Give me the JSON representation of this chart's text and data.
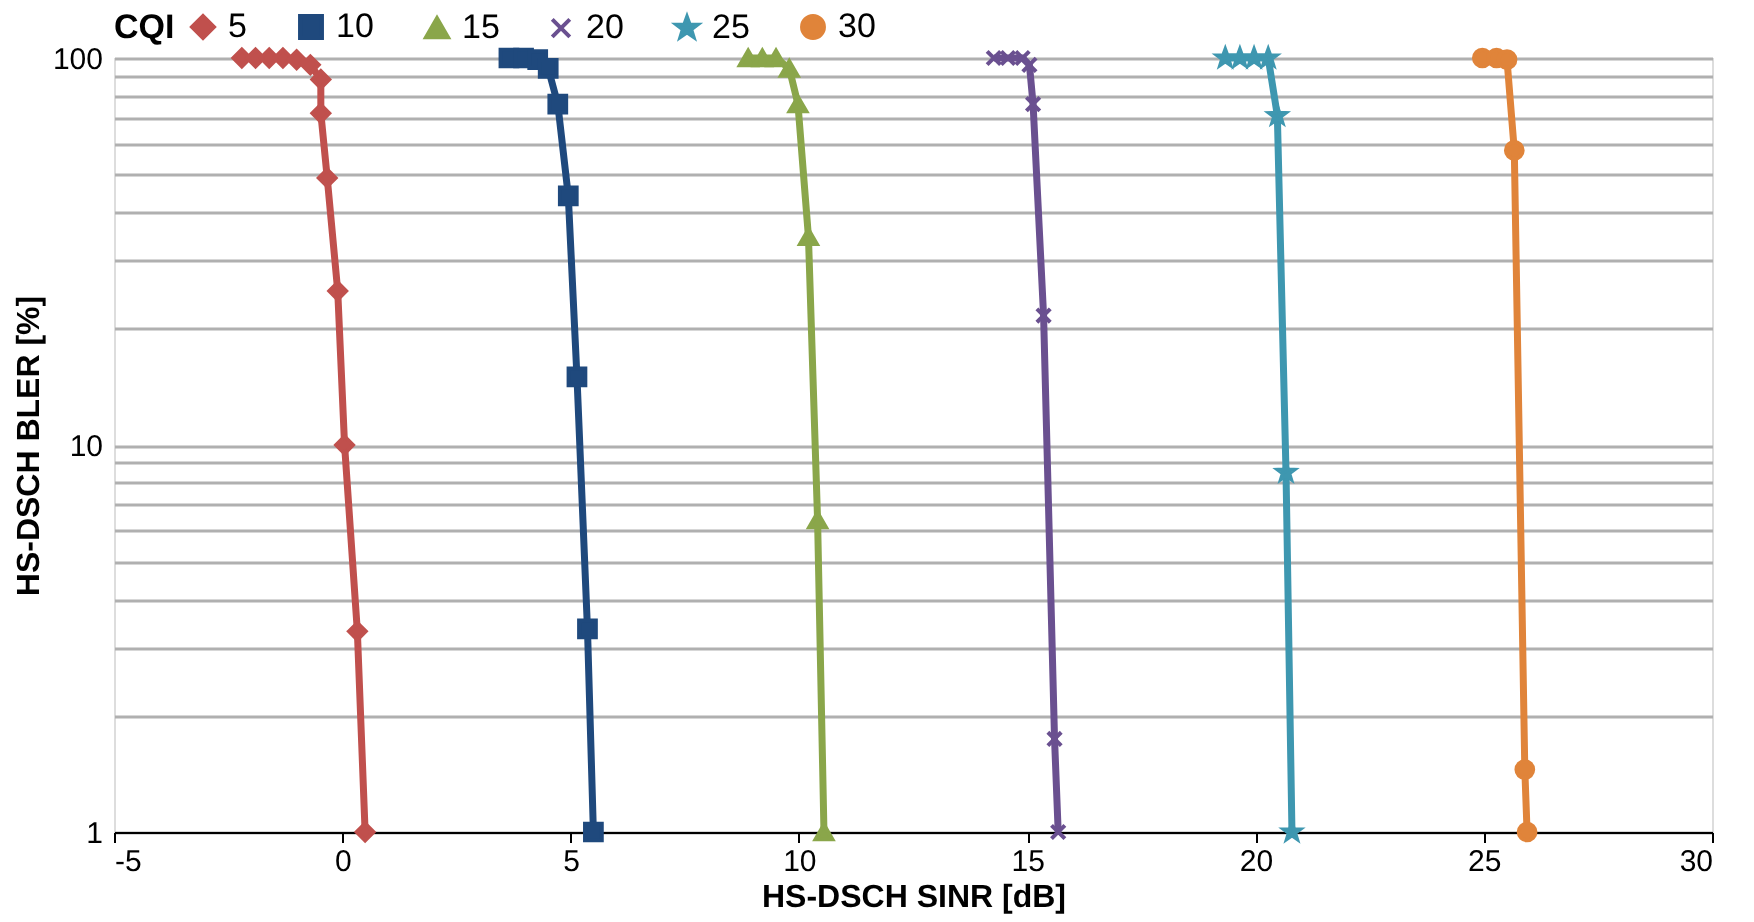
{
  "chart_data": {
    "type": "line",
    "xlabel": "HS-DSCH SINR [dB]",
    "ylabel": "HS-DSCH BLER [%]",
    "legend_title": "CQI",
    "legend": "top",
    "log": "y",
    "grid": "y",
    "line_style": "solid",
    "xlim": [
      -5,
      30
    ],
    "xticks": [
      -5,
      0,
      5,
      10,
      15,
      20,
      25,
      30
    ],
    "ylim": [
      1,
      100
    ],
    "yticks": [
      1,
      {
        "value": 2,
        "label": null
      },
      {
        "value": 3,
        "label": null
      },
      {
        "value": 4,
        "label": null
      },
      {
        "value": 5,
        "label": null
      },
      {
        "value": 6,
        "label": null
      },
      {
        "value": 7,
        "label": null
      },
      {
        "value": 8,
        "label": null
      },
      {
        "value": 9,
        "label": null
      },
      10,
      {
        "value": 20,
        "label": null
      },
      {
        "value": 30,
        "label": null
      },
      {
        "value": 40,
        "label": null
      },
      {
        "value": 50,
        "label": null
      },
      {
        "value": 60,
        "label": null
      },
      {
        "value": 70,
        "label": null
      },
      {
        "value": 80,
        "label": null
      },
      {
        "value": 90,
        "label": null
      },
      100
    ],
    "series": [
      {
        "name": "5",
        "color": "#c0504d",
        "marker": "diamond",
        "x": [
          -2.2,
          -1.9,
          -1.6,
          -1.3,
          -1.0,
          -0.7,
          -0.47,
          -0.47,
          -0.33,
          -0.1,
          0.05,
          0.33,
          0.5
        ],
        "values": [
          100,
          100,
          100,
          100,
          99,
          96,
          88,
          72,
          49,
          25,
          10,
          3.3,
          1
        ]
      },
      {
        "name": "10",
        "color": "#1f497d",
        "marker": "square",
        "x": [
          3.65,
          3.97,
          4.28,
          4.51,
          4.72,
          4.95,
          5.14,
          5.37,
          5.5
        ],
        "values": [
          100,
          100,
          99,
          94,
          76,
          44,
          15,
          3.35,
          1
        ]
      },
      {
        "name": "15",
        "color": "#8aa64a",
        "marker": "triangle",
        "x": [
          8.89,
          9.2,
          9.5,
          9.79,
          9.98,
          10.21,
          10.41,
          10.55
        ],
        "values": [
          100,
          100,
          100,
          94,
          76,
          34.5,
          6.4,
          1
        ]
      },
      {
        "name": "20",
        "color": "#6a5090",
        "marker": "cross",
        "x": [
          14.27,
          14.58,
          14.9,
          15.05,
          15.13,
          15.36,
          15.6,
          15.68
        ],
        "values": [
          100,
          100,
          100,
          96,
          76,
          21.6,
          1.74,
          1
        ]
      },
      {
        "name": "25",
        "color": "#3e97b0",
        "marker": "star",
        "x": [
          19.34,
          19.66,
          19.97,
          20.28,
          20.48,
          20.67,
          20.8
        ],
        "values": [
          100,
          100,
          100,
          100,
          71,
          8.5,
          1
        ]
      },
      {
        "name": "30",
        "color": "#e0843a",
        "marker": "circle",
        "x": [
          24.97,
          25.28,
          25.51,
          25.67,
          25.9,
          25.95
        ],
        "values": [
          100,
          100,
          99,
          57.7,
          1.45,
          1
        ]
      }
    ]
  }
}
